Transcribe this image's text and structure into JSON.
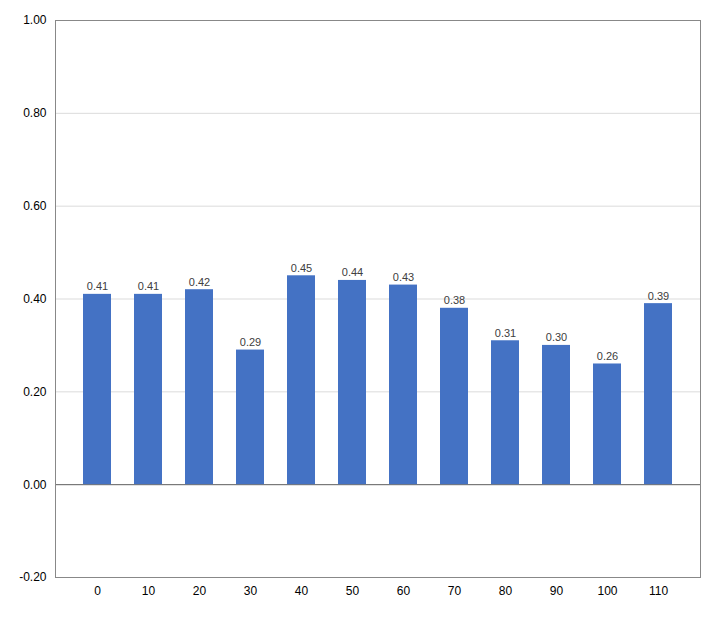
{
  "chart_data": {
    "type": "bar",
    "categories": [
      0,
      10,
      20,
      30,
      40,
      50,
      60,
      70,
      80,
      90,
      100,
      110
    ],
    "values": [
      0.41,
      0.41,
      0.42,
      0.29,
      0.45,
      0.44,
      0.43,
      0.38,
      0.31,
      0.3,
      0.26,
      0.39
    ],
    "value_labels": [
      "0.41",
      "0.41",
      "0.42",
      "0.29",
      "0.45",
      "0.44",
      "0.43",
      "0.38",
      "0.31",
      "0.30",
      "0.26",
      "0.39"
    ],
    "data_labels": true,
    "color": "#4472C4",
    "ylim": [
      -0.2,
      1.0
    ],
    "yticks": [
      {
        "value": -0.2,
        "label": "-0.20"
      },
      {
        "value": 0.0,
        "label": "0.00"
      },
      {
        "value": 0.2,
        "label": "0.20"
      },
      {
        "value": 0.4,
        "label": "0.40"
      },
      {
        "value": 0.6,
        "label": "0.60"
      },
      {
        "value": 0.8,
        "label": "0.80"
      },
      {
        "value": 1.0,
        "label": "1.00"
      }
    ],
    "grid": true
  }
}
